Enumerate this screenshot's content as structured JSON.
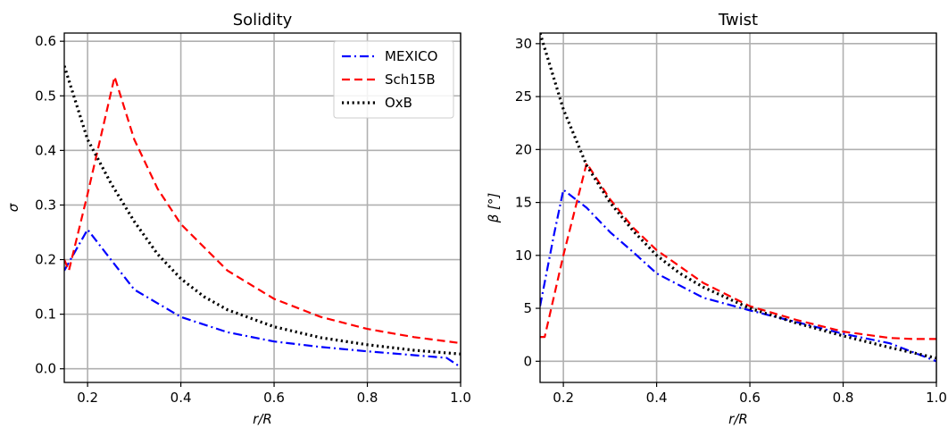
{
  "chart_data": [
    {
      "type": "line",
      "title": "Solidity",
      "xlabel": "r/R",
      "ylabel": "σ",
      "xlim": [
        0.15,
        1.0
      ],
      "ylim": [
        -0.025,
        0.615
      ],
      "xticks": [
        0.2,
        0.4,
        0.6,
        0.8,
        1.0
      ],
      "xtick_labels": [
        "0.2",
        "0.4",
        "0.6",
        "0.8",
        "1.0"
      ],
      "yticks": [
        0.0,
        0.1,
        0.2,
        0.3,
        0.4,
        0.5,
        0.6
      ],
      "ytick_labels": [
        "0.0",
        "0.1",
        "0.2",
        "0.3",
        "0.4",
        "0.5",
        "0.6"
      ],
      "grid": true,
      "legend": "top-right",
      "series": [
        {
          "name": "MEXICO",
          "color": "#0000ff",
          "style": "dashdot",
          "x": [
            0.15,
            0.2,
            0.25,
            0.3,
            0.35,
            0.4,
            0.5,
            0.6,
            0.7,
            0.8,
            0.9,
            0.97,
            1.0
          ],
          "y": [
            0.18,
            0.255,
            0.2,
            0.145,
            0.12,
            0.095,
            0.067,
            0.05,
            0.04,
            0.032,
            0.025,
            0.02,
            0.003
          ]
        },
        {
          "name": "Sch15B",
          "color": "#ff0000",
          "style": "dashed",
          "x": [
            0.15,
            0.16,
            0.2,
            0.258,
            0.3,
            0.35,
            0.4,
            0.5,
            0.6,
            0.7,
            0.8,
            0.9,
            1.0
          ],
          "y": [
            0.2,
            0.18,
            0.32,
            0.535,
            0.42,
            0.33,
            0.265,
            0.18,
            0.128,
            0.095,
            0.073,
            0.058,
            0.047
          ]
        },
        {
          "name": "OxB",
          "color": "#000000",
          "style": "dotted",
          "x": [
            0.15,
            0.2,
            0.25,
            0.3,
            0.35,
            0.4,
            0.45,
            0.5,
            0.6,
            0.7,
            0.8,
            0.9,
            1.0
          ],
          "y": [
            0.555,
            0.42,
            0.34,
            0.27,
            0.21,
            0.165,
            0.132,
            0.108,
            0.077,
            0.057,
            0.044,
            0.034,
            0.027
          ]
        }
      ]
    },
    {
      "type": "line",
      "title": "Twist",
      "xlabel": "r/R",
      "ylabel": "β [°]",
      "xlim": [
        0.15,
        1.0
      ],
      "ylim": [
        -2.0,
        31.0
      ],
      "xticks": [
        0.2,
        0.4,
        0.6,
        0.8,
        1.0
      ],
      "xtick_labels": [
        "0.2",
        "0.4",
        "0.6",
        "0.8",
        "1.0"
      ],
      "yticks": [
        0,
        5,
        10,
        15,
        20,
        25,
        30
      ],
      "ytick_labels": [
        "0",
        "5",
        "10",
        "15",
        "20",
        "25",
        "30"
      ],
      "grid": true,
      "legend": "none",
      "series": [
        {
          "name": "MEXICO",
          "color": "#0000ff",
          "style": "dashdot",
          "x": [
            0.15,
            0.18,
            0.2,
            0.25,
            0.3,
            0.35,
            0.4,
            0.5,
            0.6,
            0.7,
            0.8,
            0.9,
            1.0
          ],
          "y": [
            5.2,
            12,
            16.2,
            14.5,
            12.2,
            10.3,
            8.3,
            6.0,
            4.8,
            3.7,
            2.6,
            1.7,
            0.0
          ]
        },
        {
          "name": "Sch15B",
          "color": "#ff0000",
          "style": "dashed",
          "x": [
            0.15,
            0.16,
            0.2,
            0.25,
            0.3,
            0.35,
            0.4,
            0.5,
            0.6,
            0.7,
            0.8,
            0.9,
            0.95,
            1.0
          ],
          "y": [
            2.3,
            2.3,
            10.0,
            18.7,
            15.3,
            12.6,
            10.5,
            7.4,
            5.2,
            3.9,
            2.8,
            2.2,
            2.1,
            2.1
          ]
        },
        {
          "name": "OxB",
          "color": "#000000",
          "style": "dotted",
          "x": [
            0.15,
            0.2,
            0.25,
            0.3,
            0.35,
            0.4,
            0.45,
            0.5,
            0.6,
            0.7,
            0.8,
            0.9,
            1.0
          ],
          "y": [
            31.0,
            23.8,
            18.5,
            15.0,
            12.3,
            10.0,
            8.3,
            7.0,
            5.0,
            3.6,
            2.4,
            1.3,
            0.3
          ]
        }
      ]
    }
  ]
}
